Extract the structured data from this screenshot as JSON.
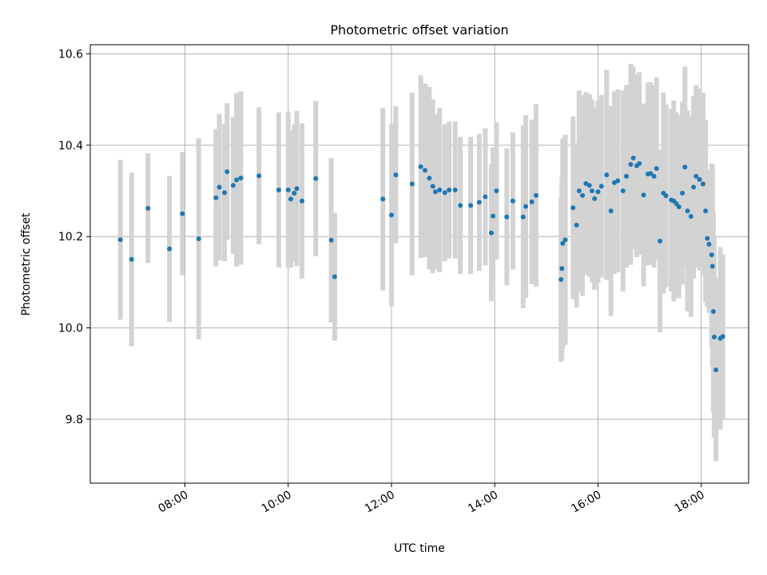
{
  "chart_data": {
    "type": "scatter",
    "title": "Photometric offset variation",
    "xlabel": "UTC time",
    "ylabel": "Photometric offset",
    "x_unit": "hours UTC",
    "xlim": [
      "06:10",
      "18:55"
    ],
    "ylim": [
      9.66,
      10.62
    ],
    "x_ticks": [
      "08:00",
      "10:00",
      "12:00",
      "14:00",
      "16:00",
      "18:00"
    ],
    "y_ticks": [
      "9.8",
      "10.0",
      "10.2",
      "10.4",
      "10.6"
    ],
    "grid": true,
    "legend": "none",
    "colors": {
      "points": "#1f77b4",
      "errorbars": "#d3d3d3",
      "grid": "#b0b0b0"
    },
    "series": [
      {
        "marker": "point",
        "errorbar": "symmetric vertical",
        "x": [
          "06:45",
          "06:58",
          "07:17",
          "07:42",
          "07:57",
          "08:16",
          "08:36",
          "08:40",
          "08:46",
          "08:49",
          "08:56",
          "09:00",
          "09:05",
          "09:26",
          "09:49",
          "10:00",
          "10:03",
          "10:07",
          "10:10",
          "10:16",
          "10:32",
          "10:50",
          "10:54",
          "11:50",
          "12:00",
          "12:05",
          "12:24",
          "12:34",
          "12:39",
          "12:44",
          "12:48",
          "12:51",
          "12:56",
          "13:02",
          "13:07",
          "13:14",
          "13:20",
          "13:32",
          "13:42",
          "13:49",
          "13:56",
          "13:58",
          "14:02",
          "14:14",
          "14:21",
          "14:33",
          "14:36",
          "14:43",
          "14:48",
          "15:17",
          "15:18",
          "15:19",
          "15:22",
          "15:31",
          "15:35",
          "15:38",
          "15:42",
          "15:46",
          "15:50",
          "15:53",
          "15:56",
          "16:00",
          "16:04",
          "16:10",
          "16:15",
          "16:19",
          "16:23",
          "16:29",
          "16:33",
          "16:38",
          "16:41",
          "16:45",
          "16:48",
          "16:53",
          "16:58",
          "17:01",
          "17:05",
          "17:08",
          "17:12",
          "17:16",
          "17:19",
          "17:25",
          "17:28",
          "17:31",
          "17:34",
          "17:38",
          "17:41",
          "17:44",
          "17:48",
          "17:51",
          "17:54",
          "17:58",
          "18:02",
          "18:05",
          "18:07",
          "18:09",
          "18:12",
          "18:13",
          "18:14",
          "18:15",
          "18:17",
          "18:22",
          "18:25"
        ],
        "y": [
          10.193,
          10.15,
          10.262,
          10.173,
          10.25,
          10.195,
          10.285,
          10.308,
          10.296,
          10.342,
          10.312,
          10.324,
          10.328,
          10.333,
          10.302,
          10.302,
          10.282,
          10.295,
          10.305,
          10.278,
          10.327,
          10.192,
          10.112,
          10.282,
          10.247,
          10.335,
          10.315,
          10.353,
          10.345,
          10.328,
          10.31,
          10.298,
          10.302,
          10.296,
          10.302,
          10.302,
          10.268,
          10.268,
          10.275,
          10.287,
          10.208,
          10.245,
          10.3,
          10.243,
          10.278,
          10.243,
          10.266,
          10.276,
          10.29,
          10.106,
          10.13,
          10.185,
          10.193,
          10.263,
          10.225,
          10.3,
          10.29,
          10.316,
          10.312,
          10.3,
          10.283,
          10.298,
          10.31,
          10.335,
          10.256,
          10.318,
          10.322,
          10.3,
          10.332,
          10.358,
          10.372,
          10.355,
          10.36,
          10.291,
          10.337,
          10.338,
          10.332,
          10.349,
          10.19,
          10.295,
          10.289,
          10.28,
          10.278,
          10.272,
          10.265,
          10.295,
          10.352,
          10.256,
          10.244,
          10.308,
          10.332,
          10.325,
          10.315,
          10.256,
          10.196,
          10.183,
          10.16,
          10.135,
          10.036,
          9.98,
          9.908,
          9.977,
          9.981
        ],
        "err": [
          0.175,
          0.19,
          0.12,
          0.16,
          0.135,
          0.22,
          0.15,
          0.16,
          0.15,
          0.15,
          0.15,
          0.19,
          0.19,
          0.15,
          0.17,
          0.17,
          0.15,
          0.15,
          0.17,
          0.17,
          0.17,
          0.18,
          0.14,
          0.2,
          0.2,
          0.15,
          0.2,
          0.2,
          0.19,
          0.2,
          0.19,
          0.17,
          0.18,
          0.15,
          0.15,
          0.15,
          0.15,
          0.15,
          0.15,
          0.15,
          0.15,
          0.15,
          0.15,
          0.15,
          0.15,
          0.2,
          0.2,
          0.18,
          0.2,
          0.18,
          0.2,
          0.23,
          0.23,
          0.2,
          0.18,
          0.22,
          0.22,
          0.2,
          0.2,
          0.2,
          0.2,
          0.2,
          0.2,
          0.23,
          0.23,
          0.2,
          0.2,
          0.22,
          0.2,
          0.22,
          0.2,
          0.2,
          0.2,
          0.2,
          0.2,
          0.2,
          0.2,
          0.2,
          0.2,
          0.22,
          0.2,
          0.2,
          0.22,
          0.2,
          0.2,
          0.2,
          0.22,
          0.22,
          0.22,
          0.2,
          0.2,
          0.2,
          0.2,
          0.2,
          0.15,
          0.15,
          0.2,
          0.22,
          0.22,
          0.22,
          0.2,
          0.2,
          0.18
        ]
      }
    ]
  }
}
